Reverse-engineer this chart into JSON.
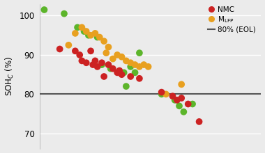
{
  "ylabel": "SOH$_C$ (%)",
  "ylim": [
    66,
    103
  ],
  "yticks": [
    70,
    80,
    90,
    100
  ],
  "xlim": [
    0,
    1.0
  ],
  "hline_y": 80,
  "hline_color": "#555555",
  "background_color": "#ebebeb",
  "grid_color": "#ffffff",
  "marker_size": 7,
  "nmc_color": "#cc2222",
  "lfp_color": "#e8a020",
  "green_color": "#5cb52b",
  "points_nmc": [
    [
      0.09,
      91.5
    ],
    [
      0.16,
      91.0
    ],
    [
      0.18,
      90.0
    ],
    [
      0.19,
      88.5
    ],
    [
      0.21,
      88.0
    ],
    [
      0.23,
      91.0
    ],
    [
      0.24,
      87.5
    ],
    [
      0.25,
      88.5
    ],
    [
      0.26,
      87.0
    ],
    [
      0.28,
      88.0
    ],
    [
      0.29,
      84.5
    ],
    [
      0.31,
      87.5
    ],
    [
      0.33,
      86.5
    ],
    [
      0.35,
      85.5
    ],
    [
      0.36,
      86.0
    ],
    [
      0.37,
      85.0
    ],
    [
      0.41,
      84.5
    ],
    [
      0.45,
      84.0
    ],
    [
      0.55,
      80.5
    ],
    [
      0.6,
      79.5
    ],
    [
      0.62,
      78.5
    ],
    [
      0.64,
      79.0
    ],
    [
      0.67,
      77.5
    ],
    [
      0.72,
      73.0
    ]
  ],
  "points_lfp": [
    [
      0.13,
      92.5
    ],
    [
      0.16,
      95.5
    ],
    [
      0.19,
      97.0
    ],
    [
      0.21,
      96.0
    ],
    [
      0.23,
      95.0
    ],
    [
      0.25,
      95.5
    ],
    [
      0.27,
      94.5
    ],
    [
      0.29,
      93.5
    ],
    [
      0.3,
      90.5
    ],
    [
      0.31,
      92.0
    ],
    [
      0.33,
      89.0
    ],
    [
      0.35,
      90.0
    ],
    [
      0.37,
      89.5
    ],
    [
      0.39,
      88.5
    ],
    [
      0.41,
      88.0
    ],
    [
      0.43,
      87.5
    ],
    [
      0.45,
      87.0
    ],
    [
      0.47,
      87.5
    ],
    [
      0.49,
      87.0
    ],
    [
      0.57,
      80.0
    ],
    [
      0.64,
      82.5
    ]
  ],
  "points_green": [
    [
      0.02,
      101.5
    ],
    [
      0.11,
      100.5
    ],
    [
      0.17,
      97.0
    ],
    [
      0.2,
      96.0
    ],
    [
      0.22,
      95.0
    ],
    [
      0.26,
      94.5
    ],
    [
      0.28,
      87.5
    ],
    [
      0.32,
      86.5
    ],
    [
      0.38,
      85.5
    ],
    [
      0.39,
      82.0
    ],
    [
      0.41,
      87.0
    ],
    [
      0.43,
      85.5
    ],
    [
      0.45,
      90.5
    ],
    [
      0.55,
      80.0
    ],
    [
      0.61,
      78.5
    ],
    [
      0.63,
      77.0
    ],
    [
      0.65,
      75.5
    ],
    [
      0.69,
      77.5
    ]
  ]
}
